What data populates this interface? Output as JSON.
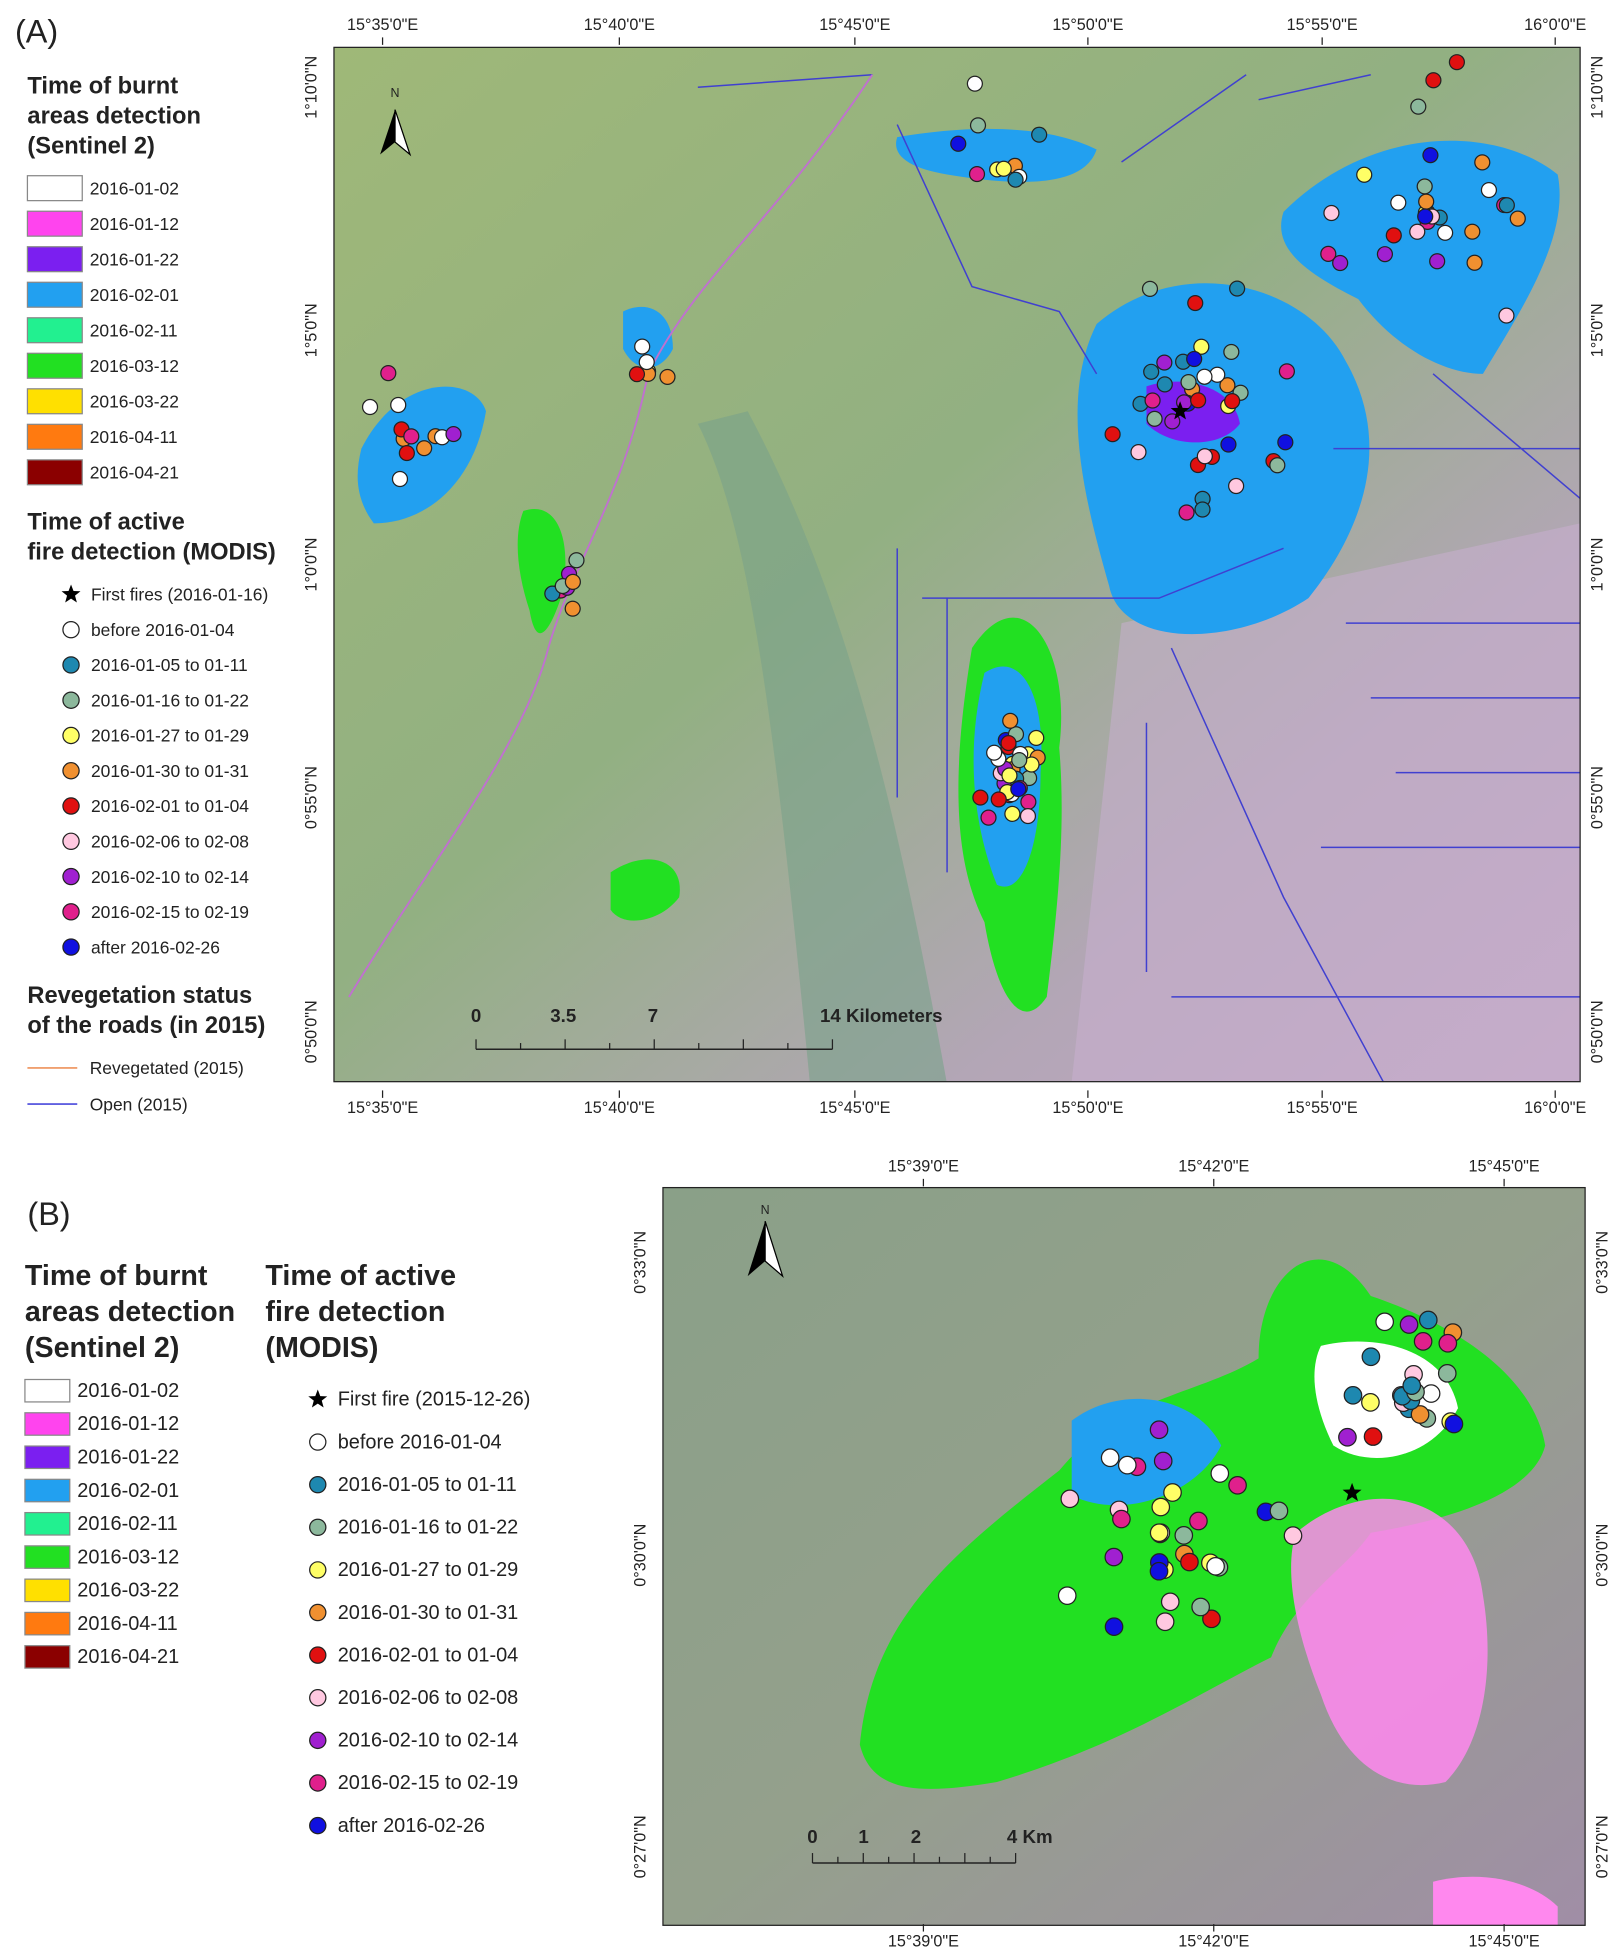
{
  "panel_a": {
    "label": "(A)",
    "burnt_legend": {
      "title": [
        "Time of burnt",
        "areas detection",
        "(Sentinel 2)"
      ],
      "items": [
        {
          "label": "2016-01-02",
          "color": "#ffffff"
        },
        {
          "label": "2016-01-12",
          "color": "#ff44ee"
        },
        {
          "label": "2016-01-22",
          "color": "#7b1ff0"
        },
        {
          "label": "2016-02-01",
          "color": "#22a0f0"
        },
        {
          "label": "2016-02-11",
          "color": "#22f090"
        },
        {
          "label": "2016-03-12",
          "color": "#22e022"
        },
        {
          "label": "2016-03-22",
          "color": "#ffe000"
        },
        {
          "label": "2016-04-11",
          "color": "#ff7a10"
        },
        {
          "label": "2016-04-21",
          "color": "#8b0000"
        }
      ]
    },
    "fire_legend": {
      "title": [
        "Time of active",
        "fire detection (MODIS)"
      ],
      "items": [
        {
          "label": "First fires (2016-01-16)",
          "symbol": "star",
          "color": "#000000"
        },
        {
          "label": "before 2016-01-04",
          "symbol": "circle",
          "color": "#ffffff"
        },
        {
          "label": "2016-01-05 to 01-11",
          "symbol": "circle",
          "color": "#1e88b0"
        },
        {
          "label": "2016-01-16 to 01-22",
          "symbol": "circle",
          "color": "#8cb89c"
        },
        {
          "label": "2016-01-27 to 01-29",
          "symbol": "circle",
          "color": "#ffff66"
        },
        {
          "label": "2016-01-30 to 01-31",
          "symbol": "circle",
          "color": "#f09030"
        },
        {
          "label": "2016-02-01 to 01-04",
          "symbol": "circle",
          "color": "#e01010"
        },
        {
          "label": "2016-02-06 to 02-08",
          "symbol": "circle",
          "color": "#ffc8e0"
        },
        {
          "label": "2016-02-10 to 02-14",
          "symbol": "circle",
          "color": "#a020d0"
        },
        {
          "label": "2016-02-15 to 02-19",
          "symbol": "circle",
          "color": "#e0208c"
        },
        {
          "label": "after 2016-02-26",
          "symbol": "circle",
          "color": "#1010e0"
        }
      ]
    },
    "road_legend": {
      "title": [
        "Revegetation status",
        "of the roads (in 2015)"
      ],
      "items": [
        {
          "label": "Revegetated (2015)",
          "color": "#f0a070"
        },
        {
          "label": "Open (2015)",
          "color": "#6060e0"
        }
      ]
    },
    "lon_labels": [
      "15°35'0\"E",
      "15°40'0\"E",
      "15°45'0\"E",
      "15°50'0\"E",
      "15°55'0\"E",
      "16°0'0\"E"
    ],
    "lat_labels": [
      "1°10'0\"N",
      "1°5'0\"N",
      "1°0'0\"N",
      "0°55'0\"N",
      "0°50'0\"N"
    ],
    "scale_labels": [
      "0",
      "3.5",
      "7",
      "14 Kilometers"
    ],
    "north": "N"
  },
  "panel_b": {
    "label": "(B)",
    "burnt_legend": {
      "title": [
        "Time of burnt",
        "areas detection",
        "(Sentinel 2)"
      ],
      "items": [
        {
          "label": "2016-01-02",
          "color": "#ffffff"
        },
        {
          "label": "2016-01-12",
          "color": "#ff44ee"
        },
        {
          "label": "2016-01-22",
          "color": "#7b1ff0"
        },
        {
          "label": "2016-02-01",
          "color": "#22a0f0"
        },
        {
          "label": "2016-02-11",
          "color": "#22f090"
        },
        {
          "label": "2016-03-12",
          "color": "#22e022"
        },
        {
          "label": "2016-03-22",
          "color": "#ffe000"
        },
        {
          "label": "2016-04-11",
          "color": "#ff7a10"
        },
        {
          "label": "2016-04-21",
          "color": "#8b0000"
        }
      ]
    },
    "fire_legend": {
      "title": [
        "Time of active",
        "fire detection",
        "(MODIS)"
      ],
      "items": [
        {
          "label": "First fire (2015-12-26)",
          "symbol": "star",
          "color": "#000000"
        },
        {
          "label": "before 2016-01-04",
          "symbol": "circle",
          "color": "#ffffff"
        },
        {
          "label": "2016-01-05 to 01-11",
          "symbol": "circle",
          "color": "#1e88b0"
        },
        {
          "label": "2016-01-16 to 01-22",
          "symbol": "circle",
          "color": "#8cb89c"
        },
        {
          "label": "2016-01-27 to 01-29",
          "symbol": "circle",
          "color": "#ffff66"
        },
        {
          "label": "2016-01-30 to 01-31",
          "symbol": "circle",
          "color": "#f09030"
        },
        {
          "label": "2016-02-01 to 01-04",
          "symbol": "circle",
          "color": "#e01010"
        },
        {
          "label": "2016-02-06 to 02-08",
          "symbol": "circle",
          "color": "#ffc8e0"
        },
        {
          "label": "2016-02-10 to 02-14",
          "symbol": "circle",
          "color": "#a020d0"
        },
        {
          "label": "2016-02-15 to 02-19",
          "symbol": "circle",
          "color": "#e0208c"
        },
        {
          "label": "after 2016-02-26",
          "symbol": "circle",
          "color": "#1010e0"
        }
      ]
    },
    "lon_labels": [
      "15°39'0\"E",
      "15°42'0\"E",
      "15°45'0\"E"
    ],
    "lat_labels": [
      "0°33'0\"N",
      "0°30'0\"N",
      "0°27'0\"N"
    ],
    "scale_labels": [
      "0",
      "1",
      "2",
      "4 Km"
    ],
    "north": "N"
  }
}
